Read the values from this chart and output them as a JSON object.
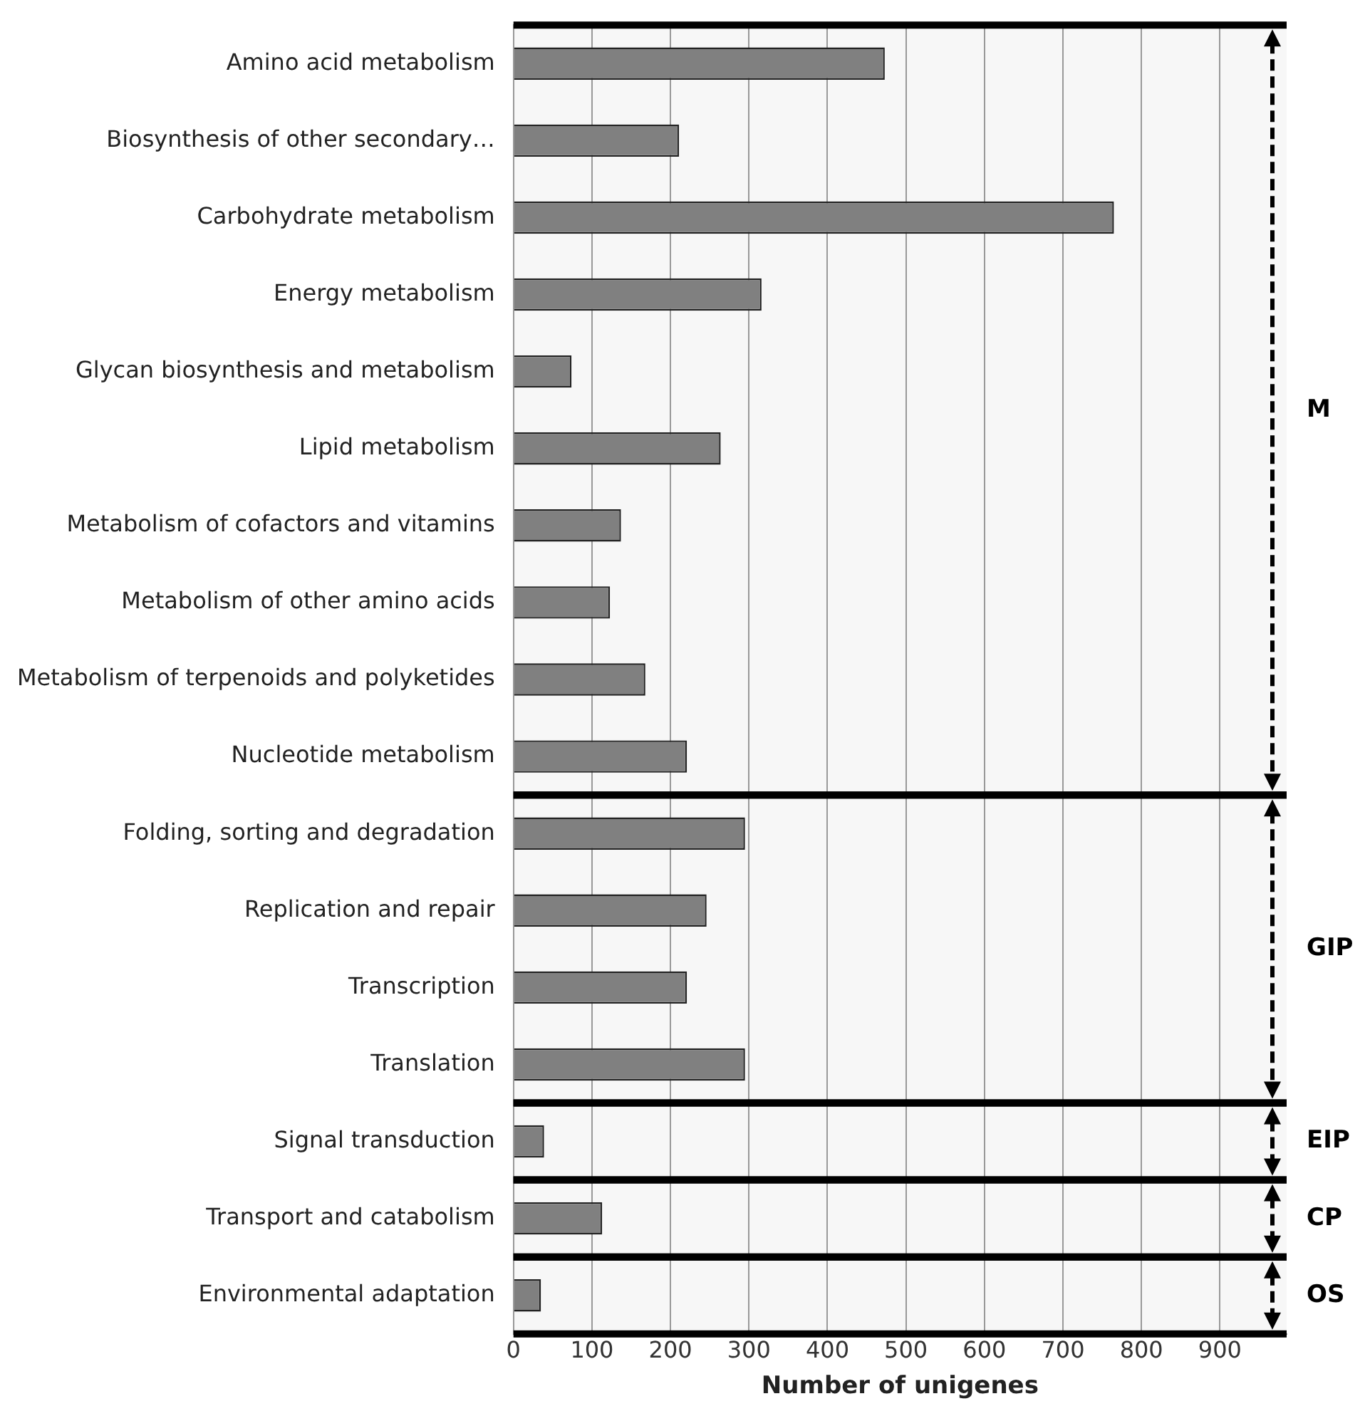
{
  "chart_data": {
    "type": "bar",
    "orientation": "horizontal",
    "xlabel": "Number of unigenes",
    "categories": [
      "Amino acid metabolism",
      "Biosynthesis of other secondary…",
      "Carbohydrate metabolism",
      "Energy metabolism",
      "Glycan biosynthesis and metabolism",
      "Lipid metabolism",
      "Metabolism of cofactors and vitamins",
      "Metabolism of other amino acids",
      "Metabolism of terpenoids and polyketides",
      "Nucleotide metabolism",
      "Folding, sorting and degradation",
      "Replication and repair",
      "Transcription",
      "Translation",
      "Signal transduction",
      "Transport and catabolism",
      "Environmental adaptation"
    ],
    "values": [
      473,
      211,
      765,
      316,
      74,
      264,
      137,
      123,
      168,
      221,
      295,
      246,
      221,
      295,
      39,
      113,
      35
    ],
    "color": "#808080",
    "xlim": [
      0,
      985
    ],
    "xticks": [
      0,
      100,
      200,
      300,
      400,
      500,
      600,
      700,
      800,
      900
    ],
    "grid": "x",
    "legend": false,
    "bands": [
      {
        "axis": "y",
        "from": "Amino acid metabolism",
        "to": "Nucleotide metabolism",
        "label": "M",
        "color": "#f7f7f7"
      },
      {
        "axis": "y",
        "from": "Folding, sorting and degradation",
        "to": "Translation",
        "label": "GIP",
        "color": "#f7f7f7"
      },
      {
        "axis": "y",
        "from": "Signal transduction",
        "to": "Signal transduction",
        "label": "EIP",
        "color": "#f7f7f7"
      },
      {
        "axis": "y",
        "from": "Transport and catabolism",
        "to": "Transport and catabolism",
        "label": "CP",
        "color": "#f7f7f7"
      },
      {
        "axis": "y",
        "from": "Environmental adaptation",
        "to": "Environmental adaptation",
        "label": "OS",
        "color": "#f7f7f7"
      }
    ]
  }
}
